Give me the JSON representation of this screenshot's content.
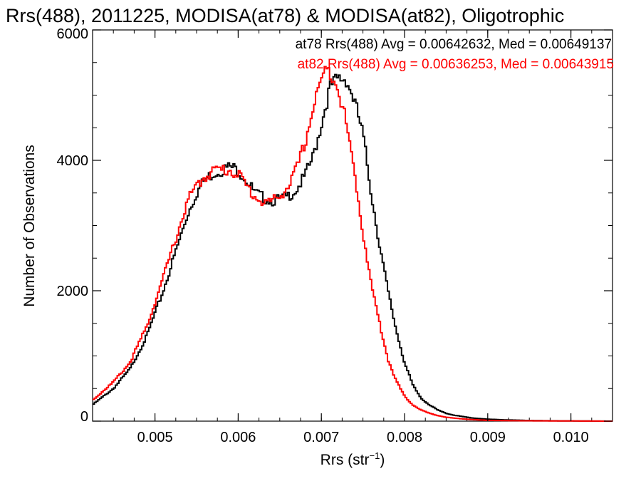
{
  "chart_data": {
    "type": "line",
    "title": "Rrs(488), 2011225, MODISA(at78) & MODISA(at82), Oligotrophic",
    "xlabel": "Rrs (str",
    "xlabel_sup": "−1",
    "xlabel_end": ")",
    "ylabel": "Number of Observations",
    "xlim": [
      0.00425,
      0.0105
    ],
    "ylim": [
      0,
      6000
    ],
    "xticks": [
      0.005,
      0.006,
      0.007,
      0.008,
      0.009,
      0.01
    ],
    "xtick_labels": [
      "0.005",
      "0.006",
      "0.007",
      "0.008",
      "0.009",
      "0.010"
    ],
    "yticks": [
      0,
      2000,
      4000,
      6000
    ],
    "ytick_labels": [
      "0",
      "2000",
      "4000",
      "6000"
    ],
    "grid": false,
    "annotations": [
      {
        "text": "at78 Rrs(488) Avg = 0.00642632, Med = 0.00649137",
        "color": "#000000"
      },
      {
        "text": "at82 Rrs(488) Avg = 0.00636253, Med = 0.00643915",
        "color": "#ff0000"
      }
    ],
    "series": [
      {
        "name": "at78",
        "color": "#000000",
        "x": [
          0.00425,
          0.0045,
          0.0047,
          0.0049,
          0.0051,
          0.0053,
          0.0054,
          0.0055,
          0.0056,
          0.0057,
          0.0058,
          0.0059,
          0.006,
          0.0061,
          0.0062,
          0.0063,
          0.0064,
          0.0065,
          0.0066,
          0.0067,
          0.0068,
          0.0069,
          0.007,
          0.0071,
          0.0072,
          0.0073,
          0.0074,
          0.0075,
          0.0076,
          0.0077,
          0.0078,
          0.0079,
          0.008,
          0.0081,
          0.0082,
          0.0083,
          0.0084,
          0.0085,
          0.0086,
          0.0087,
          0.0088,
          0.0089,
          0.009,
          0.0092,
          0.0095,
          0.0098,
          0.0101,
          0.0105
        ],
        "y": [
          250,
          500,
          800,
          1300,
          2000,
          2800,
          3200,
          3500,
          3700,
          3800,
          3850,
          3900,
          3850,
          3700,
          3500,
          3430,
          3380,
          3400,
          3450,
          3550,
          3750,
          4050,
          4550,
          5100,
          5250,
          5250,
          4900,
          4400,
          3500,
          2700,
          2000,
          1400,
          900,
          550,
          350,
          250,
          170,
          120,
          90,
          70,
          50,
          40,
          30,
          20,
          10,
          5,
          3,
          0
        ]
      },
      {
        "name": "at82",
        "color": "#ff0000",
        "x": [
          0.00425,
          0.0045,
          0.0047,
          0.0049,
          0.0051,
          0.0053,
          0.0054,
          0.0055,
          0.0056,
          0.0057,
          0.0058,
          0.0059,
          0.006,
          0.0061,
          0.0062,
          0.0063,
          0.0064,
          0.0065,
          0.0066,
          0.0067,
          0.0068,
          0.0069,
          0.007,
          0.0071,
          0.0072,
          0.0073,
          0.0074,
          0.0075,
          0.0076,
          0.0077,
          0.0078,
          0.0079,
          0.008,
          0.0081,
          0.0082,
          0.0083,
          0.0084,
          0.0085,
          0.0086,
          0.0087,
          0.0088,
          0.0089,
          0.009,
          0.0092,
          0.0095,
          0.0098,
          0.0101,
          0.0105
        ],
        "y": [
          320,
          600,
          900,
          1450,
          2200,
          3000,
          3400,
          3600,
          3750,
          3850,
          3850,
          3850,
          3800,
          3600,
          3450,
          3350,
          3370,
          3450,
          3600,
          3850,
          4250,
          4800,
          5250,
          5400,
          5150,
          4550,
          3800,
          2900,
          2100,
          1500,
          950,
          620,
          380,
          250,
          170,
          120,
          85,
          60,
          45,
          35,
          25,
          18,
          12,
          8,
          5,
          3,
          2,
          0
        ]
      }
    ]
  }
}
